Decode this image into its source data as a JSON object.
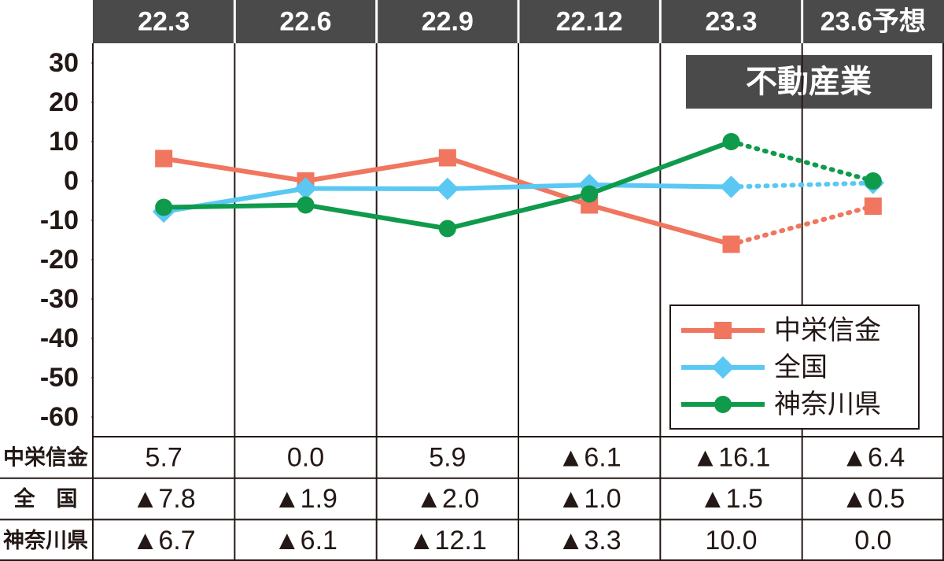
{
  "chart_data": {
    "type": "line",
    "title": "不動産業",
    "categories": [
      "22.3",
      "22.6",
      "22.9",
      "22.12",
      "23.3",
      "23.6予想"
    ],
    "series": [
      {
        "name": "中栄信金",
        "table_label": "中栄信金",
        "color": "#f0765f",
        "marker": "square",
        "values": [
          5.7,
          0.0,
          5.9,
          -6.1,
          -16.1,
          -6.4
        ],
        "value_labels": [
          "5.7",
          "0.0",
          "5.9",
          "▲6.1",
          "▲16.1",
          "▲6.4"
        ]
      },
      {
        "name": "全国",
        "table_label": "全　国",
        "color": "#5ac8f2",
        "marker": "diamond",
        "values": [
          -7.8,
          -1.9,
          -2.0,
          -1.0,
          -1.5,
          -0.5
        ],
        "value_labels": [
          "▲7.8",
          "▲1.9",
          "▲2.0",
          "▲1.0",
          "▲1.5",
          "▲0.5"
        ]
      },
      {
        "name": "神奈川県",
        "table_label": "神奈川県",
        "color": "#0f9a4c",
        "marker": "circle",
        "values": [
          -6.7,
          -6.1,
          -12.1,
          -3.3,
          10.0,
          0.0
        ],
        "value_labels": [
          "▲6.7",
          "▲6.1",
          "▲12.1",
          "▲3.3",
          "10.0",
          "0.0"
        ]
      }
    ],
    "ylim": [
      -65,
      35
    ],
    "yticks": [
      -60,
      -50,
      -40,
      -30,
      -20,
      -10,
      0,
      10,
      20,
      30
    ],
    "legend": "lower right"
  }
}
